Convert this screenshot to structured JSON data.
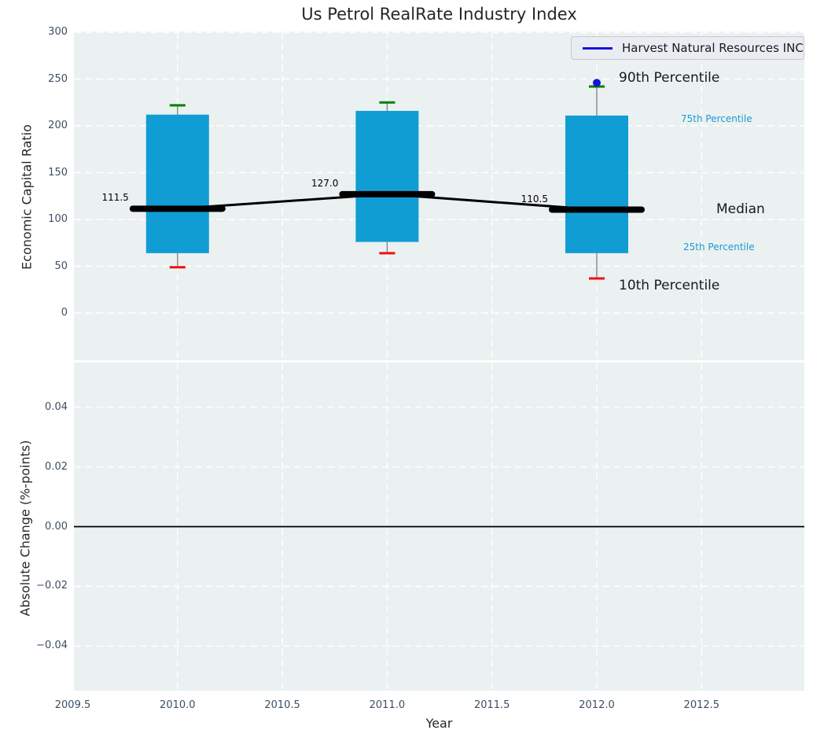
{
  "title": "Us Petrol RealRate Industry Index",
  "legend": {
    "label": "Harvest Natural Resources INC"
  },
  "annotations": {
    "p90": "90th Percentile",
    "p75": "75th Percentile",
    "median": "Median",
    "p25": "25th Percentile",
    "p10": "10th Percentile"
  },
  "colors": {
    "box_fill": "#109dd4",
    "cap_top": "#008000",
    "cap_bottom": "#ee1111",
    "median_line": "#000000",
    "company": "#1414dd",
    "grid": "#ffffff",
    "axes_bg": "#ebf0f1",
    "zero_line": "#000000",
    "whisker": "#7f7f7f"
  },
  "chart_data": {
    "type": "boxplot+line",
    "title": "Us Petrol RealRate Industry Index",
    "xlabel": "Year",
    "grid": true,
    "legend_position": "upper right",
    "xlim": [
      2009.5,
      2012.99
    ],
    "xticks": [
      {
        "v": 2009.5,
        "label": "2009.5"
      },
      {
        "v": 2010.0,
        "label": "2010.0"
      },
      {
        "v": 2010.5,
        "label": "2010.5"
      },
      {
        "v": 2011.0,
        "label": "2011.0"
      },
      {
        "v": 2011.5,
        "label": "2011.5"
      },
      {
        "v": 2012.0,
        "label": "2012.0"
      },
      {
        "v": 2012.5,
        "label": "2012.5"
      }
    ],
    "top_panel": {
      "ylabel": "Economic Capital Ratio",
      "ylim": [
        -50,
        300
      ],
      "yticks": [
        {
          "v": 300,
          "label": "300"
        },
        {
          "v": 250,
          "label": "250"
        },
        {
          "v": 200,
          "label": "200"
        },
        {
          "v": 150,
          "label": "150"
        },
        {
          "v": 100,
          "label": "100"
        },
        {
          "v": 50,
          "label": "50"
        },
        {
          "v": 0,
          "label": "0"
        }
      ],
      "boxes": [
        {
          "year": 2010,
          "p90": 222,
          "p75": 212,
          "median": 111.5,
          "p25": 64,
          "p10": 49,
          "median_label": "111.5"
        },
        {
          "year": 2011,
          "p90": 225,
          "p75": 216,
          "median": 127.0,
          "p25": 76,
          "p10": 64,
          "median_label": "127.0"
        },
        {
          "year": 2012,
          "p90": 242,
          "p75": 211,
          "median": 110.5,
          "p25": 64,
          "p10": 37,
          "median_label": "110.5"
        }
      ],
      "median_series": {
        "x": [
          2010,
          2011,
          2012
        ],
        "y": [
          111.5,
          127.0,
          110.5
        ]
      },
      "company_point": {
        "name": "Harvest Natural Resources INC",
        "year": 2012,
        "value": 246
      }
    },
    "bottom_panel": {
      "ylabel": "Absolute Change (%-points)",
      "ylim": [
        -0.055,
        0.055
      ],
      "zero_line_value": 0.0,
      "yticks": [
        {
          "v": 0.04,
          "label": "0.04"
        },
        {
          "v": 0.02,
          "label": "0.02"
        },
        {
          "v": 0.0,
          "label": "0.00"
        },
        {
          "v": -0.02,
          "label": "−0.02"
        },
        {
          "v": -0.04,
          "label": "−0.04"
        }
      ]
    }
  }
}
